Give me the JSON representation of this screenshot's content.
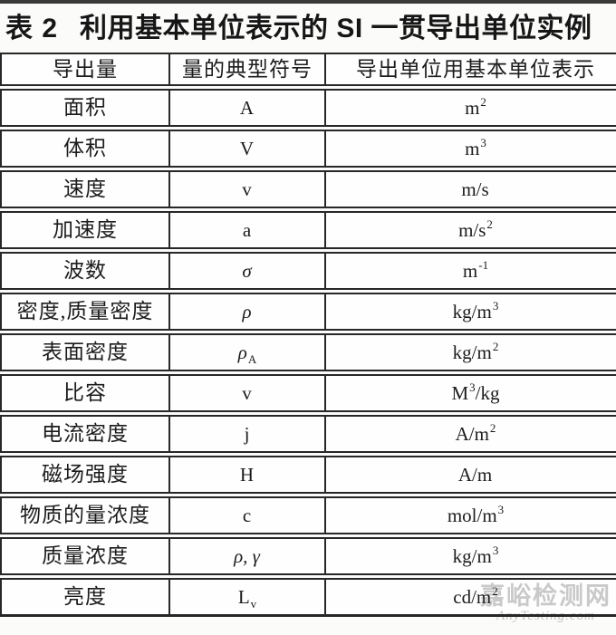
{
  "title": {
    "prefix": "表 2",
    "text": "利用基本单位表示的 SI 一贯导出单位实例"
  },
  "table": {
    "headers": [
      "导出量",
      "量的典型符号",
      "导出单位用基本单位表示"
    ],
    "rows": [
      {
        "quantity": "面积",
        "sym": "A",
        "sym_sub": "",
        "unit_pre": "m",
        "unit_sup": "2",
        "unit_post": ""
      },
      {
        "quantity": "体积",
        "sym": "V",
        "sym_sub": "",
        "unit_pre": "m",
        "unit_sup": "3",
        "unit_post": ""
      },
      {
        "quantity": "速度",
        "sym": "v",
        "sym_sub": "",
        "unit_pre": "m/s",
        "unit_sup": "",
        "unit_post": ""
      },
      {
        "quantity": "加速度",
        "sym": "a",
        "sym_sub": "",
        "unit_pre": "m/s",
        "unit_sup": "2",
        "unit_post": ""
      },
      {
        "quantity": "波数",
        "sym": "σ",
        "sym_sub": "",
        "unit_pre": "m",
        "unit_sup": "-1",
        "unit_post": ""
      },
      {
        "quantity": "密度,质量密度",
        "sym": "ρ",
        "sym_sub": "",
        "unit_pre": "kg/m",
        "unit_sup": "3",
        "unit_post": ""
      },
      {
        "quantity": "表面密度",
        "sym": "ρ",
        "sym_sub": "A",
        "unit_pre": "kg/m",
        "unit_sup": "2",
        "unit_post": ""
      },
      {
        "quantity": "比容",
        "sym": "v",
        "sym_sub": "",
        "unit_pre": "M",
        "unit_sup": "3",
        "unit_post": "/kg"
      },
      {
        "quantity": "电流密度",
        "sym": "j",
        "sym_sub": "",
        "unit_pre": "A/m",
        "unit_sup": "2",
        "unit_post": ""
      },
      {
        "quantity": "磁场强度",
        "sym": "H",
        "sym_sub": "",
        "unit_pre": "A/m",
        "unit_sup": "",
        "unit_post": ""
      },
      {
        "quantity": "物质的量浓度",
        "sym": "c",
        "sym_sub": "",
        "unit_pre": "mol/m",
        "unit_sup": "3",
        "unit_post": ""
      },
      {
        "quantity": "质量浓度",
        "sym": "ρ, γ",
        "sym_sub": "",
        "unit_pre": "kg/m",
        "unit_sup": "3",
        "unit_post": ""
      },
      {
        "quantity": "亮度",
        "sym": "L",
        "sym_sub": "v",
        "unit_pre": "cd/m",
        "unit_sup": "2",
        "unit_post": ""
      }
    ]
  },
  "watermark": {
    "site_name": "嘉峪检测网",
    "site_url": "AnyTesting.com"
  },
  "colors": {
    "border": "#272727",
    "text": "#1c1c1c",
    "watermark": "#c9c9c9",
    "background": "#fbfbfa"
  }
}
